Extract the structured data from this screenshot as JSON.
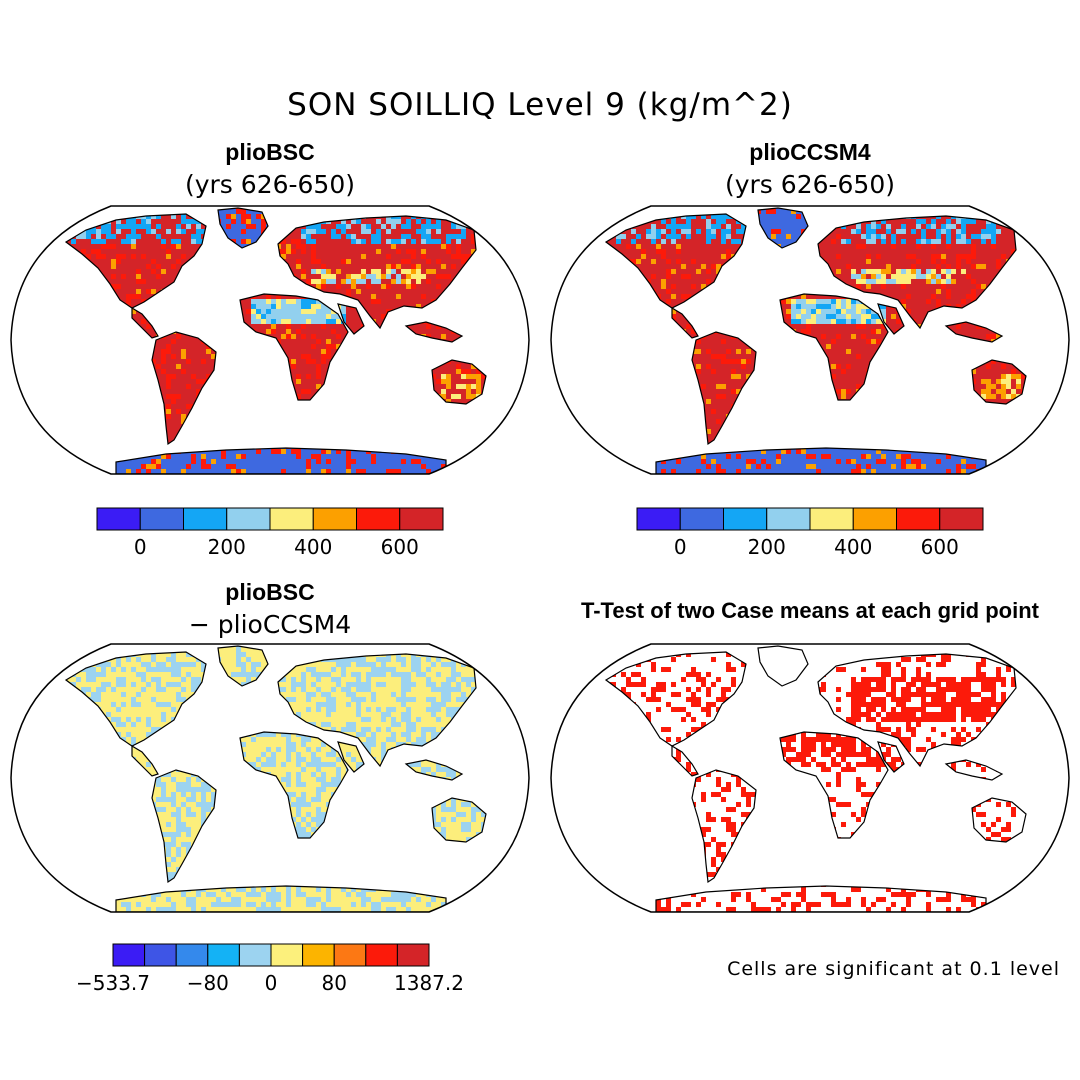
{
  "title": "SON SOILLIQ Level 9 (kg/m^2)",
  "panels": {
    "top_left": {
      "name": "plioBSC",
      "subtitle": "(yrs 626-650)"
    },
    "top_right": {
      "name": "plioCCSM4",
      "subtitle": "(yrs 626-650)"
    },
    "bottom_left": {
      "name": "plioBSC",
      "subtitle": "− plioCCSM4"
    },
    "bottom_right": {
      "name": "T-Test of two Case means at each grid point",
      "footnote": "Cells are significant at 0.1 level"
    }
  },
  "colorbar_abs": {
    "colors": [
      "#3b1cf5",
      "#3e69e0",
      "#14a6f5",
      "#92d0ee",
      "#fcee7c",
      "#fca000",
      "#fc1a0a",
      "#d42428"
    ],
    "tick_labels": [
      "0",
      "200",
      "400",
      "600"
    ],
    "tick_boundaries": [
      1,
      3,
      5,
      7
    ]
  },
  "colorbar_diff": {
    "colors": [
      "#3b1cf5",
      "#3e55e6",
      "#3489ec",
      "#14b2f5",
      "#9cd3f0",
      "#fcf07c",
      "#fcb400",
      "#fc7814",
      "#fc1a0a",
      "#d42428"
    ],
    "tick_labels": [
      "−533.7",
      "−80",
      "0",
      "80",
      "1387.2"
    ],
    "tick_boundaries": [
      0,
      3,
      5,
      7,
      10
    ]
  },
  "map_colors": {
    "ocean": "#ffffff",
    "ice": "#3e69e0",
    "wet": "#d42428",
    "red": "#fc1a0a",
    "blue": "#14a6f5",
    "light_blue": "#92d0ee",
    "yellow": "#fcee7c",
    "orange": "#fca000",
    "diff_base": "#fcee7c",
    "diff_blue": "#9cd3f0",
    "sig": "#fc1a0a"
  }
}
